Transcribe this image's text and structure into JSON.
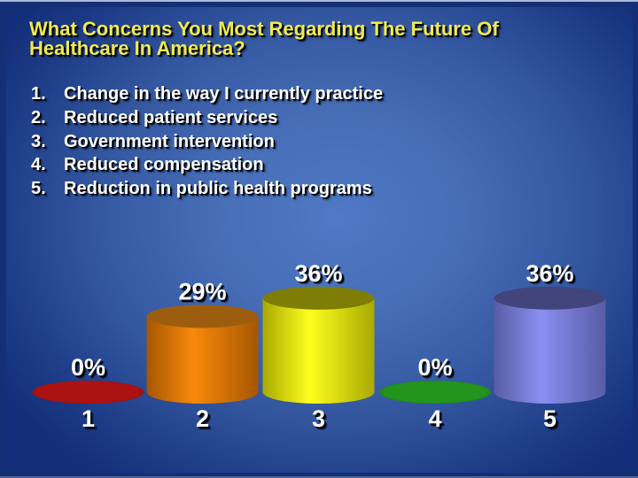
{
  "slide": {
    "title_line1": "What Concerns You Most Regarding The Future Of",
    "title_line2": "Healthcare In America?",
    "colors": {
      "title_text": "#F1EA4F",
      "body_text": "#FFFFFF",
      "background_center": "#5078C4",
      "background_edge": "#142F79",
      "frame": "#152F77",
      "top_edge_line": "#A9BBD9"
    }
  },
  "list": {
    "items": [
      {
        "num": "1.",
        "text": "Change in the way I currently practice"
      },
      {
        "num": "2.",
        "text": "Reduced patient services"
      },
      {
        "num": "3.",
        "text": "Government intervention"
      },
      {
        "num": "4.",
        "text": "Reduced compensation"
      },
      {
        "num": "5.",
        "text": "Reduction in public health programs"
      }
    ]
  },
  "chart_data": {
    "type": "bar",
    "subtype": "3d-cylinder",
    "title": "",
    "xlabel": "",
    "ylabel": "",
    "categories": [
      "1",
      "2",
      "3",
      "4",
      "5"
    ],
    "values": [
      0,
      29,
      36,
      0,
      36
    ],
    "value_labels": [
      "0%",
      "29%",
      "36%",
      "0%",
      "36%"
    ],
    "ylim": [
      0,
      40
    ],
    "grid": false,
    "legend": "none",
    "background": "transparent",
    "bars": [
      {
        "name": "1",
        "color_mid": "#AC1212",
        "color_edge": "#8B0B0B",
        "color_top": "#9E0F0F"
      },
      {
        "name": "2",
        "color_mid": "#F8890A",
        "color_edge": "#A65603",
        "color_top": "#9C5E0E"
      },
      {
        "name": "3",
        "color_mid": "#FFFF1E",
        "color_edge": "#A9A902",
        "color_top": "#7E7E06"
      },
      {
        "name": "4",
        "color_mid": "#23941D",
        "color_edge": "#147312",
        "color_top": "#1E8A19"
      },
      {
        "name": "5",
        "color_mid": "#8A8FF2",
        "color_edge": "#585CA4",
        "color_top": "#42457B"
      }
    ]
  }
}
